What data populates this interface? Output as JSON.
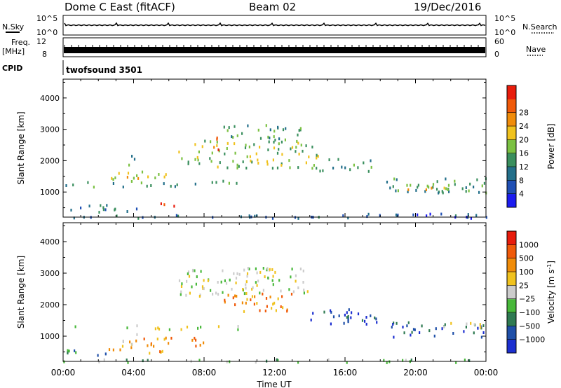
{
  "header": {
    "title": "Dome C East (fitACF)",
    "beam": "Beam 02",
    "date": "19/Dec/2016"
  },
  "strips": {
    "nsky_label": "N.Sky",
    "freq_label": "Freq.",
    "freq_unit": "[MHz]",
    "cpid_label": "CPID",
    "cpid_text": "twofsound 3501",
    "nsearch_label": "N.Search",
    "nave_label": "Nave",
    "nsky_ticks": [
      "10^5",
      "10^0"
    ],
    "nsearch_ticks": [
      "10^5",
      "10^0"
    ],
    "freq_ticks": [
      "12",
      "8"
    ],
    "nave_ticks": [
      "60",
      "0"
    ]
  },
  "chart_data": [
    {
      "type": "heatmap",
      "name": "power-panel",
      "ylabel": "Slant Range [km]",
      "xlabel": "",
      "ylim": [
        200,
        4600
      ],
      "xlim": [
        0,
        24
      ],
      "yticks": [
        "1000",
        "2000",
        "3000",
        "4000"
      ],
      "colorbar_label": "Power [dB]",
      "colorbar_ticks": [
        "4",
        "8",
        "12",
        "16",
        "20",
        "24",
        "28"
      ],
      "colorbar_colors": [
        "#1c1cf0",
        "#1f4fb4",
        "#236f8a",
        "#3a8f5e",
        "#7bc142",
        "#f0c21e",
        "#f08c0a",
        "#f05a0a",
        "#e81c0c"
      ],
      "regions": [
        {
          "t0": 0.0,
          "t1": 24.0,
          "r0": 200,
          "r1": 300,
          "level": 2
        },
        {
          "t0": 0.2,
          "t1": 4.3,
          "r0": 380,
          "r1": 620,
          "level": 2
        },
        {
          "t0": 0.0,
          "t1": 10.2,
          "r0": 1200,
          "r1": 1400,
          "level": 3
        },
        {
          "t0": 2.5,
          "t1": 6.2,
          "r0": 1400,
          "r1": 1700,
          "level": 5
        },
        {
          "t0": 3.5,
          "t1": 5.0,
          "r0": 1900,
          "r1": 2200,
          "level": 3
        },
        {
          "t0": 5.5,
          "t1": 6.3,
          "r0": 500,
          "r1": 800,
          "level": 8
        },
        {
          "t0": 6.5,
          "t1": 14.5,
          "r0": 1800,
          "r1": 2700,
          "level": 4
        },
        {
          "t0": 8.5,
          "t1": 9.5,
          "r0": 2300,
          "r1": 2800,
          "level": 7
        },
        {
          "t0": 9.0,
          "t1": 13.5,
          "r0": 2700,
          "r1": 3200,
          "level": 3
        },
        {
          "t0": 14.5,
          "t1": 17.5,
          "r0": 1700,
          "r1": 2100,
          "level": 3
        },
        {
          "t0": 18.0,
          "t1": 24.0,
          "r0": 1000,
          "r1": 1500,
          "level": 3
        },
        {
          "t0": 18.8,
          "t1": 22.5,
          "r0": 1100,
          "r1": 1300,
          "level": 5
        },
        {
          "t0": 16.0,
          "t1": 24.0,
          "r0": 200,
          "r1": 350,
          "level": 1
        }
      ]
    },
    {
      "type": "heatmap",
      "name": "velocity-panel",
      "ylabel": "Slant Range [km]",
      "xlabel": "Time UT",
      "ylim": [
        200,
        4600
      ],
      "xlim": [
        0,
        24
      ],
      "xticks": [
        "00:00",
        "04:00",
        "08:00",
        "12:00",
        "16:00",
        "20:00",
        "00:00"
      ],
      "yticks": [
        "1000",
        "2000",
        "3000",
        "4000"
      ],
      "colorbar_label": "Velocity [m s",
      "colorbar_superscript": "-1",
      "colorbar_ticks": [
        "1000",
        "500",
        "100",
        "25",
        "−25",
        "−100",
        "−500",
        "−1000"
      ],
      "colorbar_colors": [
        "#1c2fd0",
        "#1f4fa8",
        "#2f7a52",
        "#48b83a",
        "#cccccc",
        "#f0c21e",
        "#f08c0a",
        "#f05a0a",
        "#e81c0c"
      ],
      "regions": [
        {
          "t0": 0.0,
          "t1": 24.0,
          "r0": 200,
          "r1": 300,
          "level": 3
        },
        {
          "t0": 0.2,
          "t1": 2.5,
          "r0": 400,
          "r1": 650,
          "level": 2
        },
        {
          "t0": 0.0,
          "t1": 10.0,
          "r0": 1250,
          "r1": 1400,
          "level": 4
        },
        {
          "t0": 2.5,
          "t1": 4.5,
          "r0": 600,
          "r1": 1100,
          "level": 5
        },
        {
          "t0": 4.5,
          "t1": 6.5,
          "r0": 500,
          "r1": 1000,
          "level": 6
        },
        {
          "t0": 7.0,
          "t1": 8.5,
          "r0": 600,
          "r1": 1000,
          "level": 6
        },
        {
          "t0": 6.5,
          "t1": 14.0,
          "r0": 2300,
          "r1": 3200,
          "level": 4
        },
        {
          "t0": 9.0,
          "t1": 13.0,
          "r0": 1800,
          "r1": 2400,
          "level": 6
        },
        {
          "t0": 14.0,
          "t1": 18.0,
          "r0": 1400,
          "r1": 1900,
          "level": 1
        },
        {
          "t0": 18.5,
          "t1": 24.0,
          "r0": 1000,
          "r1": 1500,
          "level": 1
        },
        {
          "t0": 21.5,
          "t1": 24.0,
          "r0": 1300,
          "r1": 1500,
          "level": 4
        }
      ]
    }
  ]
}
